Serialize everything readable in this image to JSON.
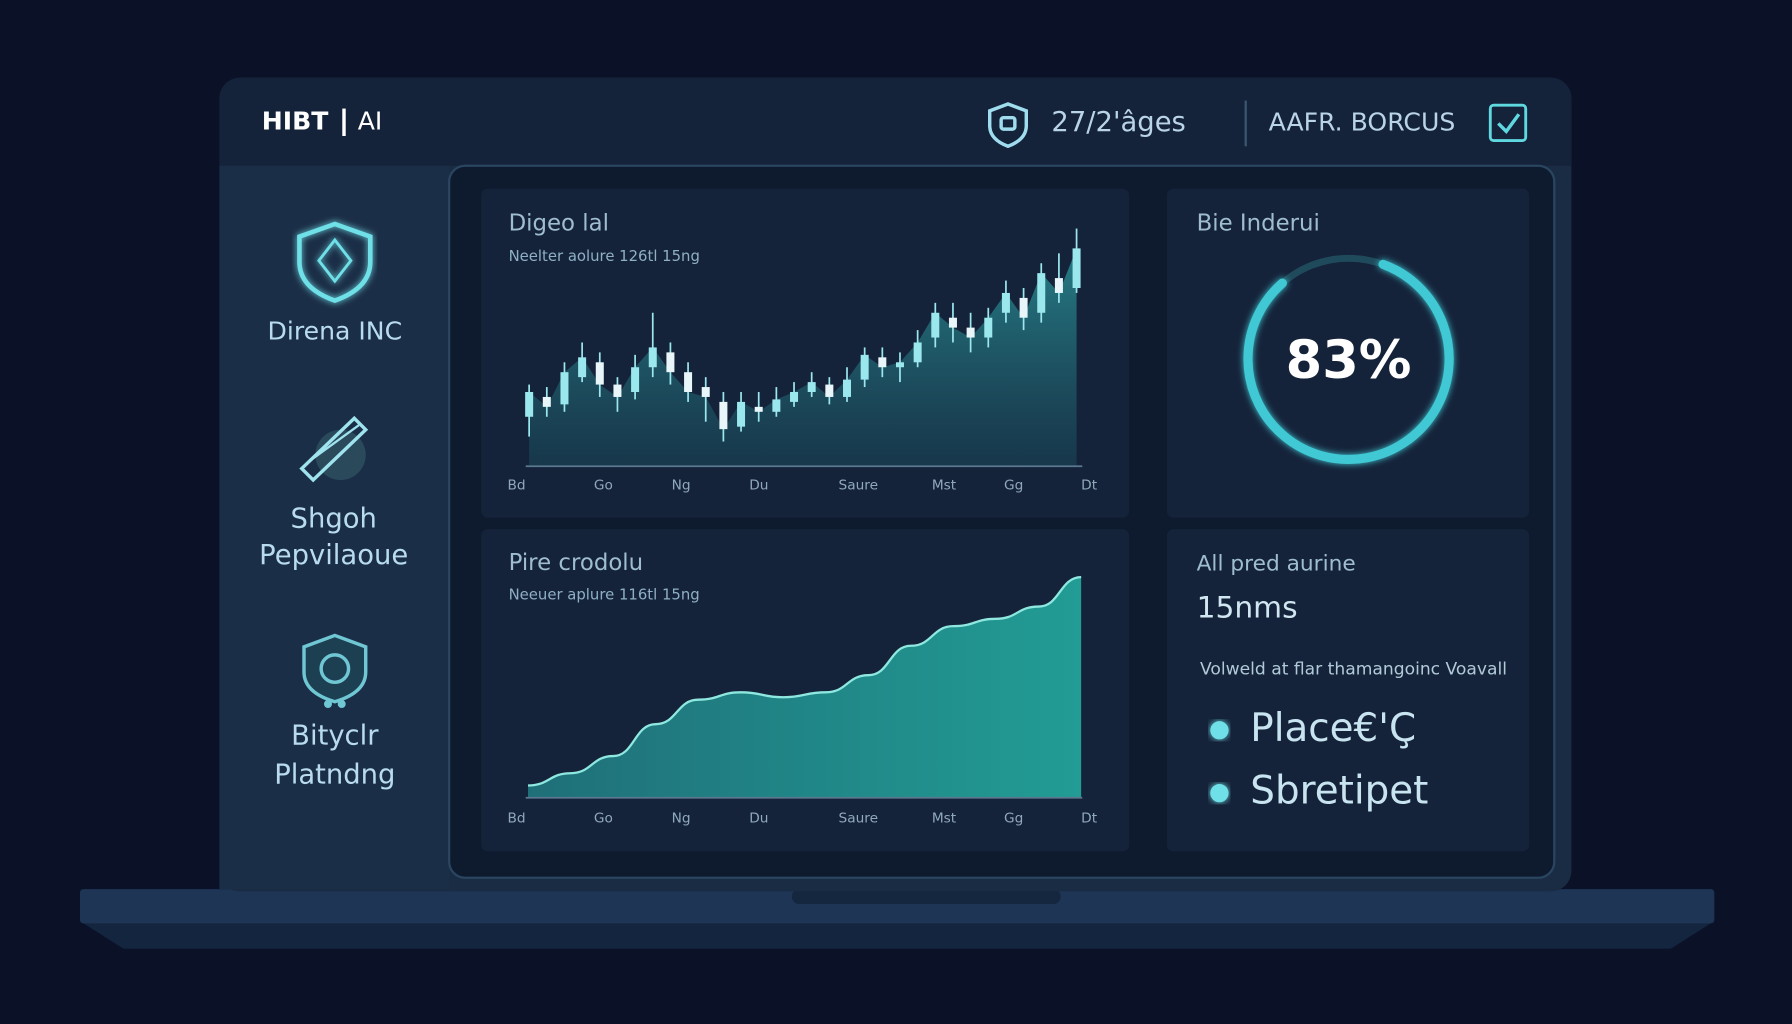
{
  "header": {
    "brand": "HIBT",
    "brand_suffix": "AI",
    "date": "27/2'âges",
    "user": "AAFR. BORCUS"
  },
  "sidebar": [
    {
      "lines": [
        "Direna INC"
      ]
    },
    {
      "lines": [
        "Shgoh",
        "Pepvilaoue"
      ]
    },
    {
      "lines": [
        "Bityclr",
        "Platndng"
      ]
    }
  ],
  "chart_data": [
    {
      "type": "candlestick",
      "title": "Digeo lal",
      "subtitle": "Neelter aolure 126tl 15ng",
      "x_labels": [
        "Bd",
        "Go",
        "Ng",
        "Du",
        "Saure",
        "Mst",
        "Gg",
        "Dt"
      ],
      "open": [
        20,
        28,
        25,
        36,
        42,
        33,
        30,
        40,
        46,
        38,
        32,
        26,
        16,
        24,
        22,
        26,
        30,
        33,
        28,
        35,
        44,
        40,
        42,
        52,
        60,
        56,
        52,
        62,
        68,
        62,
        76,
        72
      ],
      "high": [
        33,
        32,
        42,
        50,
        46,
        36,
        45,
        62,
        50,
        42,
        36,
        30,
        30,
        30,
        32,
        34,
        38,
        36,
        40,
        48,
        48,
        46,
        55,
        66,
        66,
        62,
        64,
        75,
        72,
        82,
        86,
        96
      ],
      "low": [
        12,
        20,
        22,
        34,
        28,
        22,
        27,
        36,
        33,
        26,
        18,
        10,
        14,
        18,
        20,
        24,
        28,
        25,
        26,
        32,
        36,
        34,
        40,
        48,
        50,
        46,
        48,
        58,
        55,
        58,
        66,
        70
      ],
      "close": [
        30,
        24,
        38,
        44,
        33,
        28,
        40,
        48,
        38,
        30,
        28,
        15,
        26,
        22,
        27,
        30,
        34,
        28,
        35,
        45,
        40,
        42,
        50,
        62,
        56,
        52,
        60,
        70,
        60,
        78,
        70,
        88
      ],
      "color": "#9be7ee"
    },
    {
      "type": "area",
      "title": "Pire crodolu",
      "subtitle": "Neeuer aplure 116tl 15ng",
      "x_labels": [
        "Bd",
        "Go",
        "Ng",
        "Du",
        "Saure",
        "Mst",
        "Gg",
        "Dt"
      ],
      "values": [
        5,
        10,
        17,
        30,
        40,
        43,
        41,
        43,
        50,
        62,
        70,
        73,
        78,
        90
      ],
      "color": "#22a39a"
    },
    {
      "type": "gauge",
      "title": "Bie Inderui",
      "value": 83,
      "value_label": "83%",
      "color": "#3fc9d4"
    }
  ],
  "stats": {
    "title": "All pred aurine",
    "value": "15nms",
    "note": "Volweld at flar thamangoinc Voavall",
    "items": [
      "Place€'Ç",
      "Sbretipet"
    ]
  }
}
